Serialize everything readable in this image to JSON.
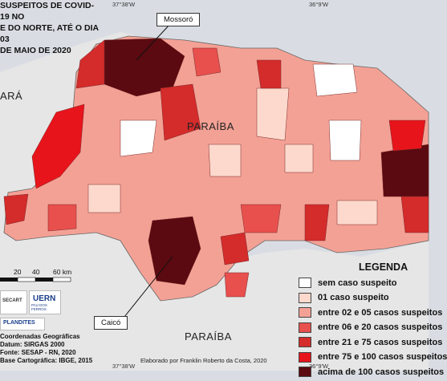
{
  "title": "SUSPEITOS DE COVID-19 NO ... DO NORTE, ATÉ O DIA 03 ... DE MAIO DE 2020",
  "title_lines": [
    "SUSPEITOS DE COVID-19 NO",
    "E DO NORTE, ATÉ O DIA 03",
    "DE MAIO DE 2020"
  ],
  "coords": {
    "top_left": "37°38'W",
    "top_right": "36°9'W",
    "bottom_left": "37°38'W",
    "bottom_right": "36°9'W"
  },
  "states": {
    "ceara": "ARÁ",
    "paraiba_top": "PARAÍBA",
    "paraiba_bottom": "PARAÍBA"
  },
  "callouts": {
    "mossoro": "Mossoró",
    "caico": "Caicó"
  },
  "legend": {
    "title": "LEGENDA",
    "items": [
      {
        "label": "sem caso suspeito",
        "color": "#ffffff"
      },
      {
        "label": "01 caso suspeito",
        "color": "#fcd9cc"
      },
      {
        "label": "entre 02 e 05 casos suspeitos",
        "color": "#f4a195"
      },
      {
        "label": "entre 06 e 20 casos suspeitos",
        "color": "#e8504d"
      },
      {
        "label": "entre 21 e 75 casos suspeitos",
        "color": "#d42b2b"
      },
      {
        "label": "entre 75 e 100 casos suspeitos",
        "color": "#e8141b"
      },
      {
        "label": "acima de 100 casos suspeitos",
        "color": "#5a0a10"
      }
    ]
  },
  "scale": {
    "ticks": [
      "20",
      "40",
      "60 km"
    ]
  },
  "logos": {
    "sesap": "SECART",
    "uern": "UERN",
    "uern_sub": "PAU DOS FERROS",
    "plandites": "PLANDITES"
  },
  "info_lines": [
    "Coordenadas Geográficas",
    "Datum: SIRGAS 2000",
    "Fonte: SESAP - RN, 2020",
    "Base Cartográfica: IBGE, 2015"
  ],
  "credit": "Elaborado por Franklin Roberto da Costa, 2020",
  "colors": {
    "ocean": "#d9dde3",
    "neighbor": "#e6e6e6",
    "border": "#777777"
  }
}
